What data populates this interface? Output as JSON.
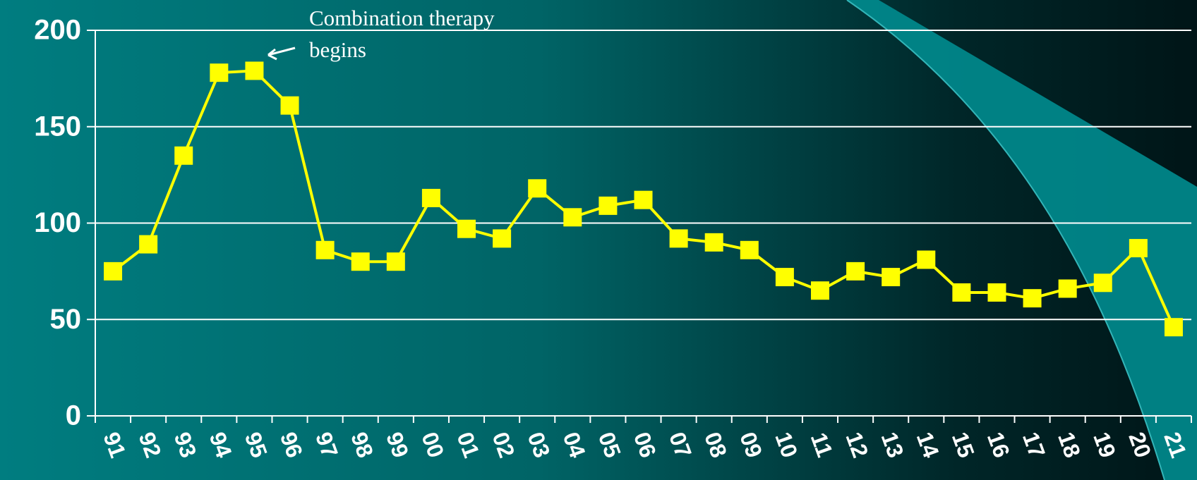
{
  "chart_data": {
    "type": "line",
    "categories": [
      "91",
      "92",
      "93",
      "94",
      "95",
      "96",
      "97",
      "98",
      "99",
      "00",
      "01",
      "02",
      "03",
      "04",
      "05",
      "06",
      "07",
      "08",
      "09",
      "10",
      "11",
      "12",
      "13",
      "14",
      "15",
      "16",
      "17",
      "18",
      "19",
      "20",
      "21"
    ],
    "series": [
      {
        "color": "#ffff00",
        "values": [
          75,
          89,
          135,
          178,
          179,
          161,
          86,
          80,
          80,
          113,
          97,
          92,
          118,
          103,
          109,
          112,
          92,
          90,
          86,
          72,
          65,
          75,
          72,
          81,
          64,
          64,
          61,
          66,
          69,
          87,
          46
        ]
      }
    ],
    "ylim": [
      0,
      200
    ],
    "yticks": [
      0,
      50,
      100,
      150,
      200
    ],
    "grid": true,
    "annotation": [
      "Combination therapy",
      "begins"
    ]
  }
}
